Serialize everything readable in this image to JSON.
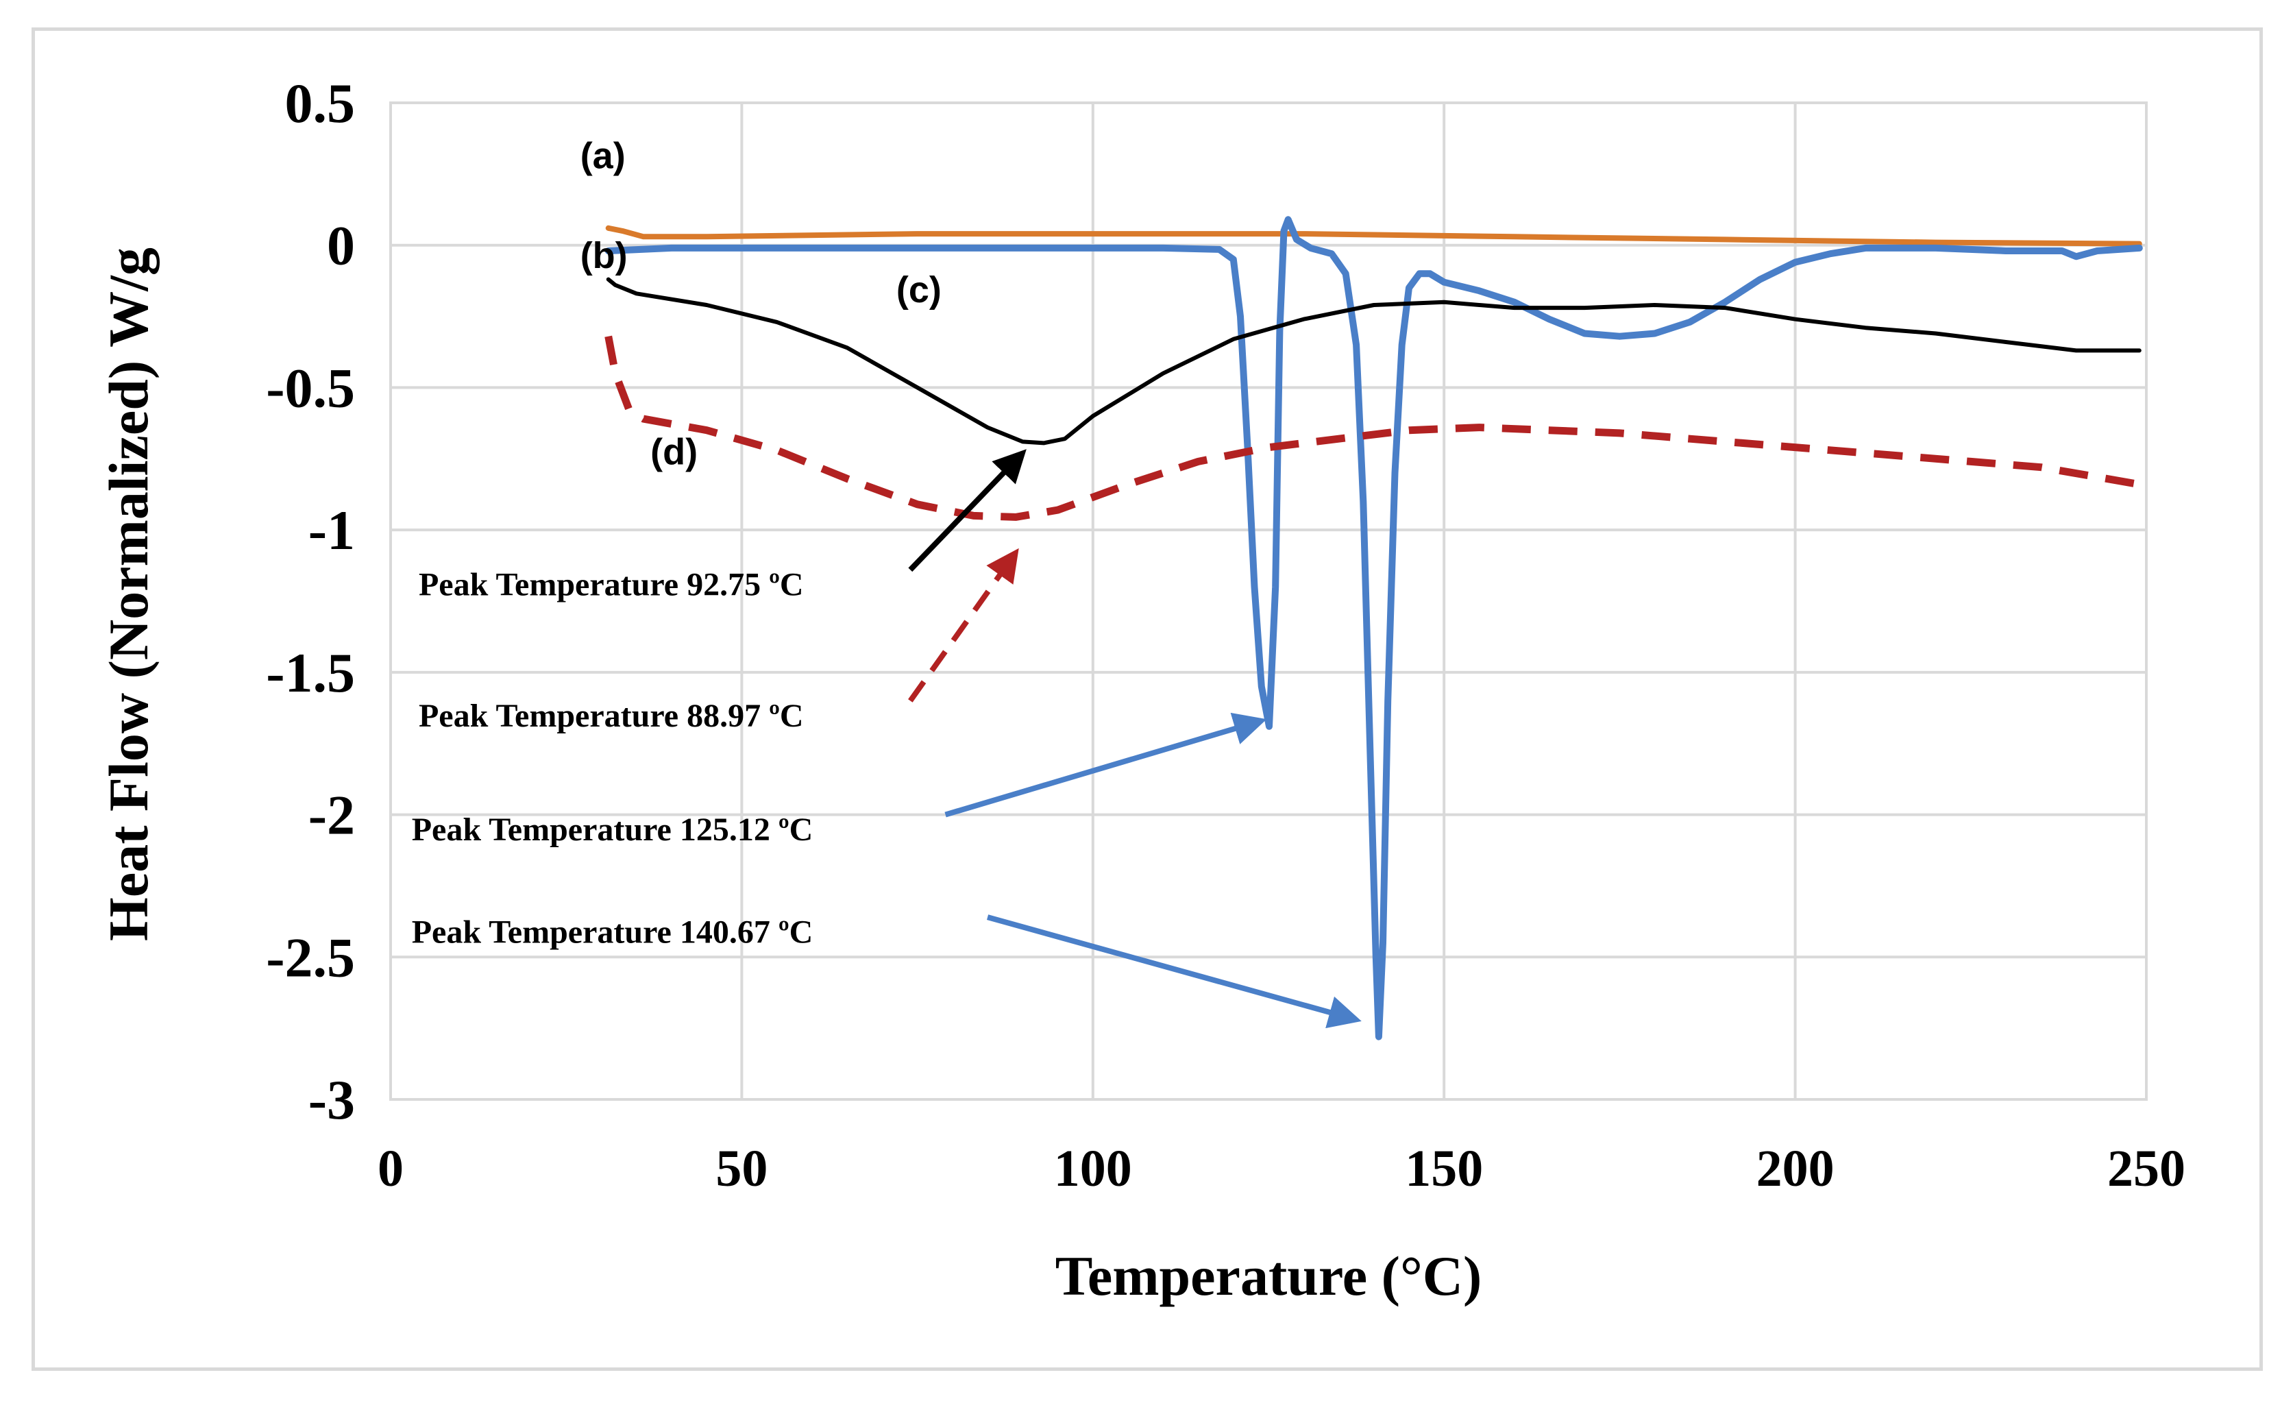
{
  "chart_data": {
    "type": "line",
    "title": "",
    "xlabel": "Temperature (°C)",
    "ylabel": "Heat Flow (Normalized)  W/g",
    "xlim": [
      0,
      250
    ],
    "ylim": [
      -3,
      0.5
    ],
    "xticks": [
      0,
      50,
      100,
      150,
      200,
      250
    ],
    "yticks": [
      0.5,
      0,
      -0.5,
      -1,
      -1.5,
      -2,
      -2.5,
      -3
    ],
    "xtick_labels": [
      "0",
      "50",
      "100",
      "150",
      "200",
      "250"
    ],
    "ytick_labels": [
      "0.5",
      "0",
      "-0.5",
      "-1",
      "-1.5",
      "-2",
      "-2.5",
      "-3"
    ],
    "grid": true,
    "series": [
      {
        "name": "(a)",
        "color": "#d97a2b",
        "style": "solid",
        "points": [
          [
            31,
            0.06
          ],
          [
            33,
            0.05
          ],
          [
            36,
            0.03
          ],
          [
            45,
            0.03
          ],
          [
            75,
            0.04
          ],
          [
            100,
            0.04
          ],
          [
            130,
            0.04
          ],
          [
            160,
            0.03
          ],
          [
            190,
            0.02
          ],
          [
            220,
            0.01
          ],
          [
            249,
            0.005
          ]
        ]
      },
      {
        "name": "(b)",
        "color": "#4a7fc8",
        "style": "solid",
        "points": [
          [
            31,
            -0.02
          ],
          [
            40,
            -0.01
          ],
          [
            80,
            -0.01
          ],
          [
            110,
            -0.01
          ],
          [
            118,
            -0.015
          ],
          [
            120,
            -0.05
          ],
          [
            121,
            -0.25
          ],
          [
            122,
            -0.7
          ],
          [
            123,
            -1.2
          ],
          [
            124,
            -1.55
          ],
          [
            125.1,
            -1.69
          ],
          [
            126,
            -1.2
          ],
          [
            126.6,
            -0.3
          ],
          [
            127.2,
            0.05
          ],
          [
            127.8,
            0.09
          ],
          [
            129,
            0.02
          ],
          [
            131,
            -0.01
          ],
          [
            134,
            -0.03
          ],
          [
            136,
            -0.1
          ],
          [
            137.5,
            -0.35
          ],
          [
            138.5,
            -0.9
          ],
          [
            139.5,
            -1.8
          ],
          [
            140.3,
            -2.5
          ],
          [
            140.7,
            -2.78
          ],
          [
            141.3,
            -2.45
          ],
          [
            142,
            -1.6
          ],
          [
            143,
            -0.8
          ],
          [
            144,
            -0.35
          ],
          [
            145,
            -0.15
          ],
          [
            146.5,
            -0.1
          ],
          [
            148,
            -0.1
          ],
          [
            150,
            -0.13
          ],
          [
            155,
            -0.16
          ],
          [
            160,
            -0.2
          ],
          [
            165,
            -0.26
          ],
          [
            170,
            -0.31
          ],
          [
            175,
            -0.32
          ],
          [
            180,
            -0.31
          ],
          [
            185,
            -0.27
          ],
          [
            190,
            -0.2
          ],
          [
            195,
            -0.12
          ],
          [
            200,
            -0.06
          ],
          [
            205,
            -0.03
          ],
          [
            210,
            -0.01
          ],
          [
            220,
            -0.01
          ],
          [
            230,
            -0.02
          ],
          [
            238,
            -0.02
          ],
          [
            240,
            -0.04
          ],
          [
            243,
            -0.02
          ],
          [
            249,
            -0.01
          ]
        ]
      },
      {
        "name": "(c)",
        "color": "#000000",
        "style": "solid",
        "points": [
          [
            31,
            -0.12
          ],
          [
            32,
            -0.14
          ],
          [
            35,
            -0.17
          ],
          [
            45,
            -0.21
          ],
          [
            55,
            -0.27
          ],
          [
            65,
            -0.36
          ],
          [
            75,
            -0.5
          ],
          [
            85,
            -0.64
          ],
          [
            90,
            -0.69
          ],
          [
            93,
            -0.695
          ],
          [
            96,
            -0.68
          ],
          [
            100,
            -0.6
          ],
          [
            110,
            -0.45
          ],
          [
            120,
            -0.33
          ],
          [
            130,
            -0.26
          ],
          [
            140,
            -0.21
          ],
          [
            150,
            -0.2
          ],
          [
            160,
            -0.22
          ],
          [
            170,
            -0.22
          ],
          [
            180,
            -0.21
          ],
          [
            190,
            -0.22
          ],
          [
            200,
            -0.26
          ],
          [
            210,
            -0.29
          ],
          [
            220,
            -0.31
          ],
          [
            230,
            -0.34
          ],
          [
            240,
            -0.37
          ],
          [
            249,
            -0.37
          ]
        ]
      },
      {
        "name": "(d)",
        "color": "#b22222",
        "style": "dashed",
        "points": [
          [
            31,
            -0.32
          ],
          [
            32,
            -0.45
          ],
          [
            34,
            -0.58
          ],
          [
            36,
            -0.61
          ],
          [
            45,
            -0.65
          ],
          [
            55,
            -0.72
          ],
          [
            65,
            -0.82
          ],
          [
            75,
            -0.91
          ],
          [
            83,
            -0.95
          ],
          [
            89,
            -0.955
          ],
          [
            95,
            -0.93
          ],
          [
            105,
            -0.84
          ],
          [
            115,
            -0.76
          ],
          [
            125,
            -0.71
          ],
          [
            135,
            -0.68
          ],
          [
            145,
            -0.65
          ],
          [
            155,
            -0.64
          ],
          [
            165,
            -0.65
          ],
          [
            175,
            -0.66
          ],
          [
            185,
            -0.68
          ],
          [
            195,
            -0.7
          ],
          [
            205,
            -0.72
          ],
          [
            215,
            -0.74
          ],
          [
            225,
            -0.76
          ],
          [
            235,
            -0.78
          ],
          [
            249,
            -0.84
          ]
        ]
      }
    ],
    "annotations": [
      {
        "text": "(a)",
        "x": 27,
        "y": 0.27
      },
      {
        "text": "(b)",
        "x": 27,
        "y": -0.08
      },
      {
        "text": "(c)",
        "x": 72,
        "y": -0.2
      },
      {
        "text": "(d)",
        "x": 37,
        "y": -0.77
      },
      {
        "text": "Peak Temperature 92.75 ºC",
        "x": 4,
        "y": -1.23,
        "arrow_color": "#000000",
        "arrow_style": "solid",
        "arrow_from": [
          74,
          -1.14
        ],
        "arrow_to": [
          90,
          -0.73
        ]
      },
      {
        "text": "Peak Temperature 88.97 ºC",
        "x": 4,
        "y": -1.69,
        "arrow_color": "#b22222",
        "arrow_style": "dashed",
        "arrow_from": [
          74,
          -1.6
        ],
        "arrow_to": [
          89,
          -1.08
        ]
      },
      {
        "text": "Peak Temperature 125.12 ºC",
        "x": 3,
        "y": -2.09,
        "arrow_color": "#4a7fc8",
        "arrow_style": "solid",
        "arrow_from": [
          79,
          -2.0
        ],
        "arrow_to": [
          124,
          -1.67
        ]
      },
      {
        "text": "Peak Temperature 140.67 ºC",
        "x": 3,
        "y": -2.45,
        "arrow_color": "#4a7fc8",
        "arrow_style": "solid",
        "arrow_from": [
          85,
          -2.36
        ],
        "arrow_to": [
          137.5,
          -2.72
        ]
      }
    ]
  }
}
